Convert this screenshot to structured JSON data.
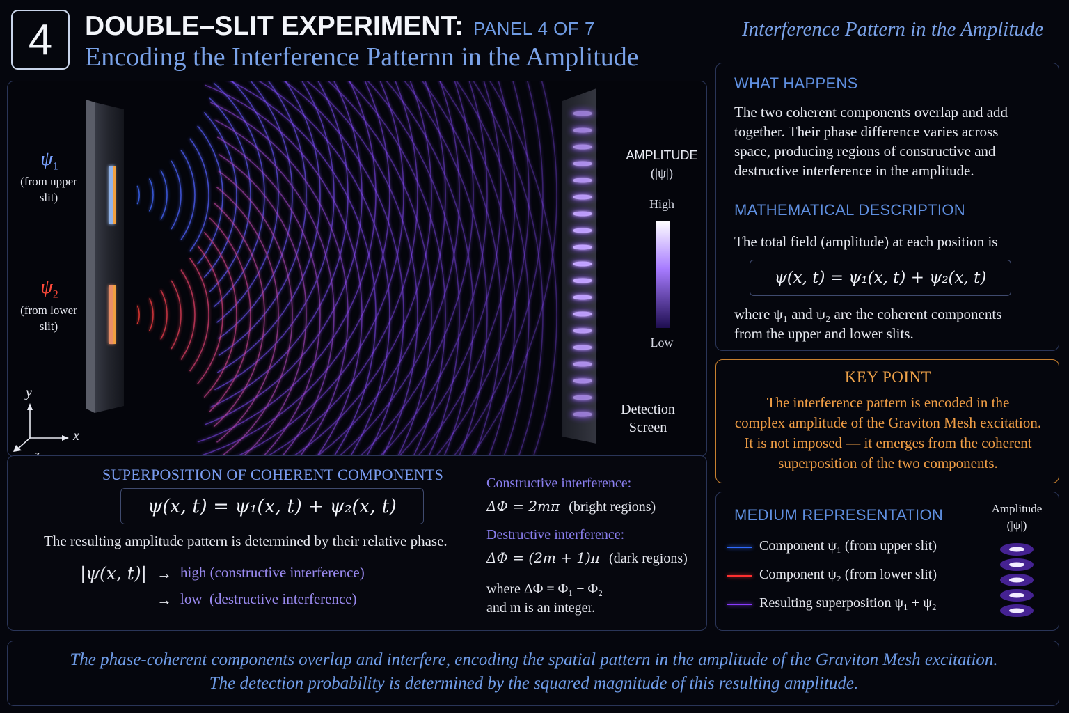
{
  "header": {
    "panel_number": "4",
    "title": "DOUBLE–SLIT EXPERIMENT:",
    "panel_label": "PANEL 4 OF 7",
    "subtitle": "Encoding the Interference Patternn in the Amplitude",
    "top_right_caption": "Interference Pattern in the Amplitude"
  },
  "diagram": {
    "psi1_symbol": "ψ",
    "psi1_sub": "1",
    "psi1_source_line1": "(from upper",
    "psi1_source_line2": "slit)",
    "psi2_symbol": "ψ",
    "psi2_sub": "2",
    "psi2_source_line1": "(from lower",
    "psi2_source_line2": "slit)",
    "axis_y": "y",
    "axis_x": "x",
    "axis_z": "z",
    "amplitude_label": "AMPLITUDE",
    "amplitude_symbol": "(|ψ|)",
    "scale_high": "High",
    "scale_low": "Low",
    "screen_label_line1": "Detection",
    "screen_label_line2": "Screen",
    "colors": {
      "psi1": "#3a6bff",
      "psi2": "#ff3b2a",
      "superposition": "#8a4bff"
    }
  },
  "superposition": {
    "heading": "SUPERPOSITION OF COHERENT COMPONENTS",
    "equation": "ψ(x, t) = ψ₁(x, t) + ψ₂(x, t)",
    "description": "The resulting amplitude pattern is determined by their relative phase.",
    "magnitude": "|ψ(x, t)|",
    "arrow": "→",
    "high_text": "high (constructive interference)",
    "low_text": "low  (destructive interference)",
    "constructive_label": "Constructive interference:",
    "constructive_eq": "ΔΦ = 2mπ",
    "constructive_note": "(bright regions)",
    "destructive_label": "Destructive interference:",
    "destructive_eq": "ΔΦ = (2m + 1)π",
    "destructive_note": "(dark regions)",
    "where_line1": "where ΔΦ = Φ₁ − Φ₂",
    "where_line2": "and m is an integer."
  },
  "what_happens": {
    "heading": "WHAT HAPPENS",
    "text_lines": [
      "The two coherent components overlap and add",
      "together. Their phase difference varies across",
      "space, producing regions of constructive and",
      "destructive interference in the amplitude."
    ]
  },
  "math_description": {
    "heading": "MATHEMATICAL DESCRIPTION",
    "intro": "The total field (amplitude) at each position is",
    "equation": "ψ(x, t) = ψ₁(x, t) + ψ₂(x, t)",
    "where_line1": "where ψ₁ and ψ₂ are the coherent components",
    "where_line2": "from the upper and lower slits."
  },
  "key_point": {
    "heading": "KEY POINT",
    "lines": [
      "The interference pattern is encoded in the",
      "complex amplitude of the Graviton Mesh excitation.",
      "It is not imposed — it emerges from the coherent",
      "superposition of the two components."
    ]
  },
  "medium": {
    "heading": "MEDIUM REPRESENTATION",
    "items": [
      {
        "label": "Component ψ₁ (from upper slit)",
        "color": "#2f6bff"
      },
      {
        "label": "Component ψ₂ (from lower slit)",
        "color": "#ff3030"
      },
      {
        "label": "Resulting superposition ψ₁ + ψ₂",
        "color": "#8a3bff"
      }
    ],
    "amplitude_label": "Amplitude",
    "amplitude_symbol": "(|ψ|)"
  },
  "footer": {
    "line1": "The phase-coherent components overlap and interfere, encoding the spatial pattern in the amplitude of the Graviton Mesh excitation.",
    "line2": "The detection probability is determined by the squared magnitude of this resulting amplitude."
  }
}
